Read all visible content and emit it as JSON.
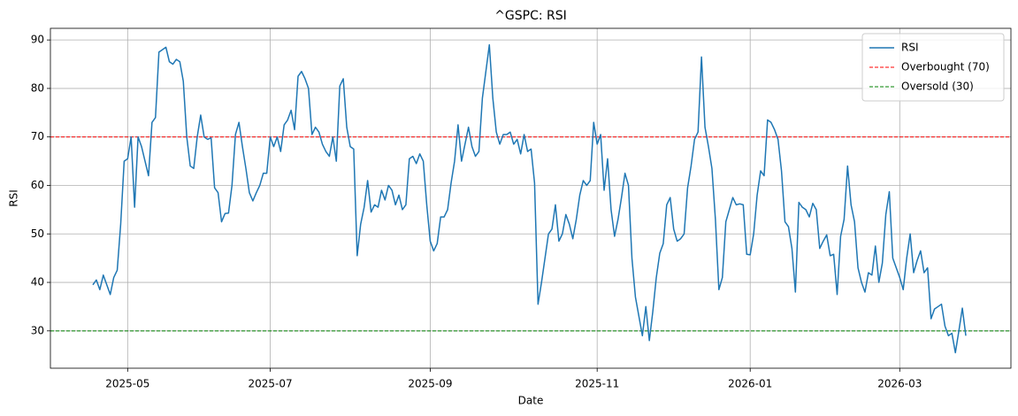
{
  "chart_data": {
    "type": "line",
    "title": "^GSPC: RSI",
    "x_label": "Date",
    "y_label": "RSI",
    "categories": [
      null,
      null,
      null,
      null,
      null,
      null,
      null,
      null,
      null,
      null,
      "2025-05",
      null,
      null,
      null,
      null,
      null,
      null,
      null,
      null,
      null,
      null,
      null,
      null,
      null,
      null,
      null,
      null,
      null,
      null,
      null,
      null,
      null,
      null,
      null,
      null,
      null,
      null,
      null,
      null,
      null,
      null,
      null,
      null,
      null,
      null,
      null,
      null,
      null,
      null,
      null,
      null,
      "2025-07",
      null,
      null,
      null,
      null,
      null,
      null,
      null,
      null,
      null,
      null,
      null,
      null,
      null,
      null,
      null,
      null,
      null,
      null,
      null,
      null,
      null,
      null,
      null,
      null,
      null,
      null,
      null,
      null,
      null,
      null,
      null,
      null,
      null,
      null,
      null,
      null,
      null,
      null,
      null,
      null,
      null,
      null,
      null,
      null,
      null,
      "2025-09",
      null,
      null,
      null,
      null,
      null,
      null,
      null,
      null,
      null,
      null,
      null,
      null,
      null,
      null,
      null,
      null,
      null,
      null,
      null,
      null,
      null,
      null,
      null,
      null,
      null,
      null,
      null,
      null,
      null,
      null,
      null,
      null,
      null,
      null,
      null,
      null,
      null,
      null,
      null,
      null,
      null,
      null,
      null,
      null,
      null,
      null,
      null,
      "2025-11",
      null,
      null,
      null,
      null,
      null,
      null,
      null,
      null,
      null,
      null,
      null,
      null,
      null,
      null,
      null,
      null,
      null,
      null,
      null,
      null,
      null,
      null,
      null,
      null,
      null,
      null,
      null,
      null,
      null,
      null,
      null,
      null,
      null,
      null,
      null,
      null,
      null,
      null,
      null,
      null,
      null,
      null,
      null,
      "2026-01",
      null,
      null,
      null,
      null,
      null,
      null,
      null,
      null,
      null,
      null,
      null,
      null,
      null,
      null,
      null,
      null,
      null,
      null,
      null,
      null,
      null,
      null,
      null,
      null,
      null,
      null,
      null,
      null,
      null,
      null,
      null,
      null,
      null,
      null,
      null,
      null,
      null,
      null,
      null,
      null,
      null,
      null,
      "2026-03",
      null,
      null,
      null,
      null,
      null,
      null,
      null,
      null,
      null,
      null,
      null,
      null,
      null,
      null,
      null,
      null,
      null,
      null,
      null
    ],
    "series": [
      {
        "name": "RSI",
        "color": "#1f77b4",
        "values": [
          39.5,
          40.5,
          38.5,
          41.5,
          39.5,
          37.5,
          41,
          42.5,
          52,
          65,
          65.5,
          70,
          55.5,
          70,
          68,
          65,
          62,
          73,
          74,
          87.5,
          88,
          88.5,
          85.5,
          85,
          86,
          85.5,
          81.5,
          70,
          64,
          63.5,
          70,
          74.5,
          70,
          69.5,
          69.8,
          59.5,
          58.5,
          52.5,
          54.2,
          54.3,
          60,
          70.5,
          73,
          68,
          63.5,
          58.5,
          56.8,
          58.5,
          60,
          62.5,
          62.5,
          70,
          68,
          70,
          67,
          72.5,
          73.5,
          75.5,
          71.5,
          82.5,
          83.5,
          82,
          80,
          70.5,
          72,
          71,
          68.5,
          67,
          66,
          70,
          65,
          80.5,
          82,
          72,
          68,
          67.5,
          45.5,
          52,
          55.5,
          61,
          54.5,
          56,
          55.5,
          59,
          57,
          60,
          59,
          56,
          58,
          55,
          56,
          65.5,
          66,
          64.5,
          66.5,
          65,
          56,
          48.5,
          46.5,
          48,
          53.5,
          53.5,
          55,
          60.5,
          65,
          72.5,
          65,
          68.5,
          72,
          68,
          66,
          67,
          78,
          83.5,
          89,
          78,
          71,
          68.5,
          70.5,
          70.5,
          71,
          68.5,
          69.5,
          66.5,
          70.5,
          67,
          67.5,
          60.5,
          35.5,
          40,
          45,
          50,
          51,
          56,
          48.5,
          50,
          54,
          52,
          49,
          53,
          58,
          61,
          60,
          61,
          73,
          68.5,
          70.5,
          59,
          65.5,
          55,
          49.5,
          53,
          57.5,
          62.5,
          60,
          45,
          37,
          33,
          29,
          35,
          28,
          34,
          41,
          46,
          48,
          56,
          57.5,
          51,
          48.5,
          49,
          50,
          59.5,
          64,
          69.5,
          71,
          86.5,
          72,
          68,
          63.5,
          53,
          38.5,
          41,
          52.5,
          55,
          57.5,
          56,
          56.2,
          56,
          45.8,
          45.7,
          50,
          58,
          63,
          62,
          73.5,
          73,
          71.5,
          69.5,
          63,
          52.5,
          51.5,
          47,
          38,
          56.5,
          55.5,
          55,
          53.5,
          56.3,
          55,
          47,
          48.5,
          49.8,
          45.5,
          45.8,
          37.5,
          49.5,
          53,
          64,
          56,
          52.5,
          43,
          40,
          38,
          42,
          41.5,
          47.5,
          40,
          44,
          54,
          58.7,
          45,
          43,
          41,
          38.5,
          45,
          50,
          42,
          44.5,
          46.5,
          42,
          43,
          32.5,
          34.5,
          35,
          35.5,
          31,
          29,
          29.5,
          25.5,
          30,
          34.7,
          29
        ]
      }
    ],
    "hlines": [
      {
        "name": "Overbought (70)",
        "value": 70,
        "color": "#ff0000"
      },
      {
        "name": "Oversold (30)",
        "value": 30,
        "color": "#008000"
      }
    ],
    "ylim": [
      22.3,
      92.4
    ],
    "yticks": [
      30,
      40,
      50,
      60,
      70,
      80,
      90
    ],
    "grid": true,
    "legend": "upper right"
  }
}
